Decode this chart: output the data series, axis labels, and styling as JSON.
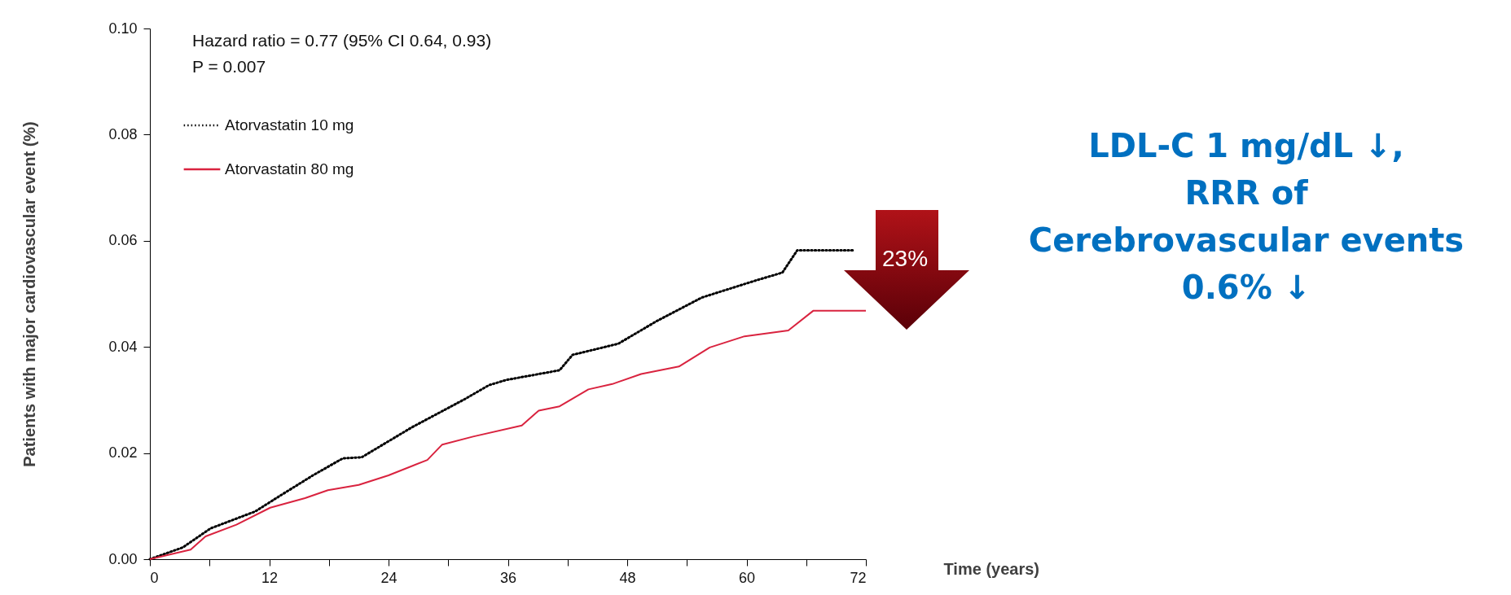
{
  "chart_data": {
    "type": "line",
    "ylabel": "Patients with major cardiovascular event (%)",
    "xlabel": "Time (years)",
    "xlim": [
      0,
      72
    ],
    "xticks": [
      0,
      {
        "value": 6,
        "label": null
      },
      12,
      {
        "value": 18,
        "label": null
      },
      24,
      {
        "value": 30,
        "label": null
      },
      36,
      {
        "value": 42,
        "label": null
      },
      48,
      {
        "value": 54,
        "label": null
      },
      60,
      {
        "value": 66,
        "label": null
      },
      72
    ],
    "ylim": [
      0,
      0.1
    ],
    "yticks": [
      {
        "value": 0,
        "label": "0.00"
      },
      {
        "value": 0.02,
        "label": "0.02"
      },
      {
        "value": 0.04,
        "label": "0.04"
      },
      {
        "value": 0.06,
        "label": "0.06"
      },
      {
        "value": 0.08,
        "label": "0.08"
      },
      {
        "value": 0.1,
        "label": "0.10"
      }
    ],
    "grid": false,
    "legend": "top left",
    "series": [
      {
        "name": "Atorvastatin 10 mg",
        "color": "#000000",
        "line_style": "dotted",
        "x": [
          0,
          3.3,
          6.1,
          10.6,
          13.3,
          16.4,
          19.4,
          21.3,
          26.3,
          31.7,
          34.1,
          35.9,
          41.2,
          42.5,
          47.1,
          51.0,
          55.5,
          60.9,
          63.6,
          65.1,
          70.9
        ],
        "values": [
          0,
          0.0022,
          0.0058,
          0.009,
          0.0122,
          0.0158,
          0.019,
          0.0192,
          0.0248,
          0.0302,
          0.0328,
          0.0338,
          0.0356,
          0.0385,
          0.0406,
          0.0449,
          0.0493,
          0.0525,
          0.054,
          0.0582,
          0.0582
        ]
      },
      {
        "name": "Atorvastatin 80 mg",
        "color": "#d9233f",
        "line_style": "solid",
        "x": [
          0,
          4.1,
          5.6,
          8.7,
          12.1,
          15.6,
          17.9,
          21.0,
          24.0,
          27.9,
          29.4,
          32.5,
          37.4,
          39.1,
          41.2,
          44.1,
          46.5,
          49.4,
          53.2,
          56.3,
          59.8,
          64.2,
          66.7,
          72.0
        ],
        "values": [
          0,
          0.0018,
          0.0043,
          0.0065,
          0.0097,
          0.0115,
          0.013,
          0.014,
          0.0158,
          0.0187,
          0.0216,
          0.0231,
          0.0252,
          0.028,
          0.0288,
          0.032,
          0.033,
          0.0349,
          0.0363,
          0.0399,
          0.042,
          0.0431,
          0.0468,
          0.0468
        ]
      }
    ],
    "annotations": [
      "Hazard ratio = 0.77 (95% CI 0.64, 0.93)",
      "P = 0.007",
      "23%",
      "LDL-C 1 mg/dL ↓,\nRRR of\nCerebrovascular events\n0.6% ↓"
    ]
  }
}
